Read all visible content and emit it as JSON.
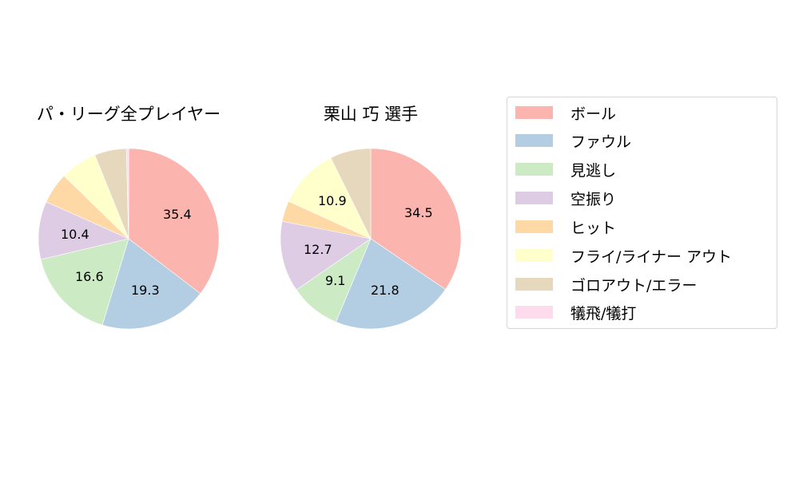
{
  "chart_data": [
    {
      "type": "pie",
      "title": "パ・リーグ全プレイヤー",
      "categories": [
        "ボール",
        "ファウル",
        "見逃し",
        "空振り",
        "ヒット",
        "フライ/ライナー アウト",
        "ゴロアウト/エラー",
        "犠飛/犠打"
      ],
      "values": [
        35.4,
        19.3,
        16.6,
        10.4,
        5.6,
        6.6,
        5.7,
        0.4
      ],
      "labels_shown": [
        "35.4",
        "19.3",
        "16.6",
        "10.4"
      ],
      "start_angle": 90,
      "direction": "clockwise"
    },
    {
      "type": "pie",
      "title": "栗山 巧  選手",
      "categories": [
        "ボール",
        "ファウル",
        "見逃し",
        "空振り",
        "ヒット",
        "フライ/ライナー アウト",
        "ゴロアウト/エラー",
        "犠飛/犠打"
      ],
      "values": [
        34.5,
        21.8,
        9.1,
        12.7,
        3.7,
        10.9,
        7.3,
        0.0
      ],
      "labels_shown": [
        "34.5",
        "21.8",
        "9.1",
        "12.7",
        "10.9"
      ],
      "start_angle": 90,
      "direction": "clockwise"
    }
  ],
  "titles": {
    "left": "パ・リーグ全プレイヤー",
    "right": "栗山 巧  選手"
  },
  "labels": {
    "left": [
      "35.4",
      "19.3",
      "16.6",
      "10.4"
    ],
    "right": [
      "34.5",
      "21.8",
      "9.1",
      "12.7",
      "10.9"
    ]
  },
  "legend": {
    "items": [
      {
        "label": "ボール",
        "color": "#fbb4ae"
      },
      {
        "label": "ファウル",
        "color": "#b3cde3"
      },
      {
        "label": "見逃し",
        "color": "#ccebc5"
      },
      {
        "label": "空振り",
        "color": "#decbe4"
      },
      {
        "label": "ヒット",
        "color": "#fed9a6"
      },
      {
        "label": "フライ/ライナー アウト",
        "color": "#ffffcc"
      },
      {
        "label": "ゴロアウト/エラー",
        "color": "#e5d8bd"
      },
      {
        "label": "犠飛/犠打",
        "color": "#fddaec"
      }
    ]
  }
}
